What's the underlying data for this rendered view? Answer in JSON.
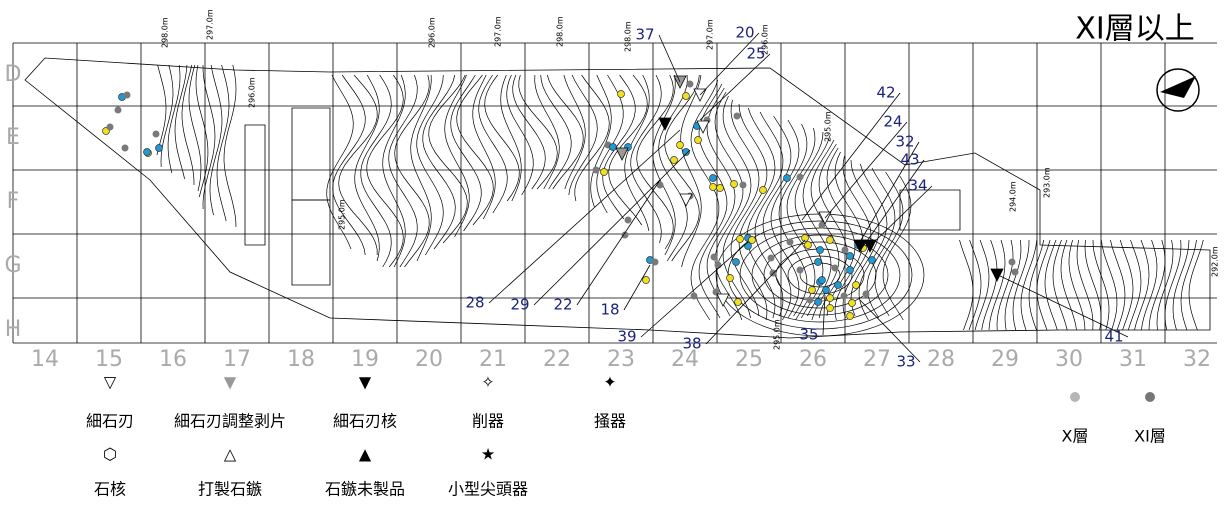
{
  "title": "XI層以上",
  "rows": [
    "D",
    "E",
    "F",
    "G",
    "H"
  ],
  "columns": [
    "14",
    "15",
    "16",
    "17",
    "18",
    "19",
    "20",
    "21",
    "22",
    "23",
    "24",
    "25",
    "26",
    "27",
    "28",
    "29",
    "30",
    "31",
    "32"
  ],
  "contour_labels": [
    "298.0m",
    "297.0m",
    "296.0m",
    "295.0m",
    "296.0m",
    "297.0m",
    "298.0m",
    "298.0m",
    "297.0m",
    "296.0m",
    "295.0m",
    "294.0m",
    "293.0m",
    "292.0m",
    "295.0m"
  ],
  "callouts": [
    "37",
    "20",
    "25",
    "42",
    "24",
    "32",
    "43",
    "34",
    "28",
    "29",
    "22",
    "18",
    "39",
    "38",
    "35",
    "33",
    "41"
  ],
  "legend": [
    {
      "symbol": "▽",
      "label": "細石刃"
    },
    {
      "symbol": "▼",
      "label": "細石刃調整剥片",
      "color": "#999999"
    },
    {
      "symbol": "▼",
      "label": "細石刃核"
    },
    {
      "symbol": "✧",
      "label": "削器"
    },
    {
      "symbol": "✦",
      "label": "掻器"
    },
    {
      "symbol": "⬡",
      "label": "石核"
    },
    {
      "symbol": "△",
      "label": "打製石鏃"
    },
    {
      "symbol": "▲",
      "label": "石鏃未製品"
    },
    {
      "symbol": "★",
      "label": "小型尖頭器"
    }
  ],
  "layers": [
    {
      "label": "X層",
      "color": "#b5b5b5"
    },
    {
      "label": "XI層",
      "color": "#777777"
    }
  ]
}
